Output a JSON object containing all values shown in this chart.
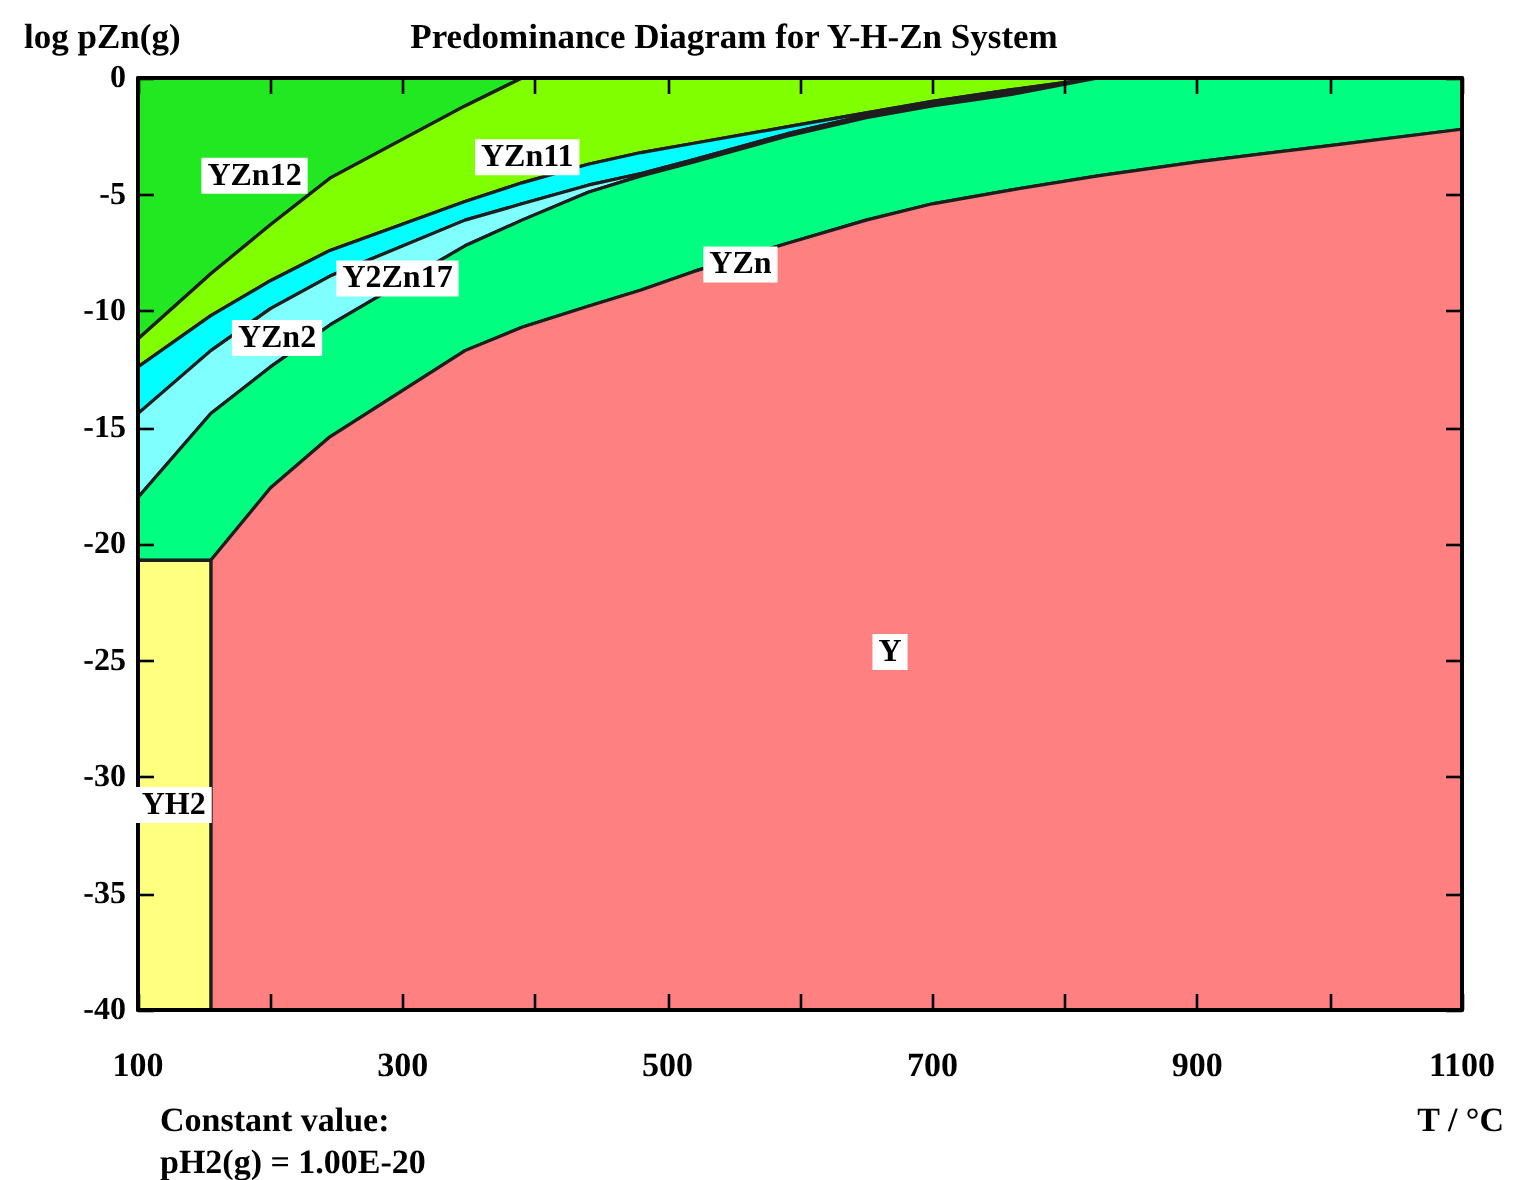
{
  "chart_data": {
    "type": "area",
    "title": "Predominance Diagram for Y-H-Zn System",
    "xlabel": "T / °C",
    "ylabel": "log pZn(g)",
    "annotations": [
      "Constant value:",
      "pH2(g) = 1.00E-20"
    ],
    "x": [
      100,
      155,
      155,
      200,
      245,
      347,
      390,
      440,
      480,
      520,
      590,
      650,
      700,
      760,
      825,
      900,
      1000,
      1100
    ],
    "stacked": true,
    "series": [
      {
        "name": "YZn12",
        "color": "#22e822",
        "values": [
          -11.2,
          -8.4,
          -8.4,
          -6.3,
          -4.3,
          -1.2,
          0,
          0,
          0,
          0,
          0,
          0,
          0,
          0,
          0,
          0,
          0,
          0
        ]
      },
      {
        "name": "YZn11",
        "color": "#80ff00",
        "values": [
          -1.2,
          -1.8,
          -1.8,
          -2.4,
          -3.1,
          -4.1,
          -4.5,
          -3.7,
          -3.2,
          -2.8,
          -2.1,
          -1.5,
          -1.0,
          -0.5,
          0,
          0,
          0,
          0
        ]
      },
      {
        "name": "Y2Zn17",
        "color": "#00ffff",
        "values": [
          -2.0,
          -1.5,
          -1.5,
          -1.2,
          -1.1,
          -0.8,
          -0.9,
          -0.9,
          -0.9,
          -0.7,
          -0.3,
          -0.1,
          -0.1,
          -0.1,
          0,
          0,
          0,
          0
        ]
      },
      {
        "name": "YZn2",
        "color": "#80ffff",
        "values": [
          -3.6,
          -2.7,
          -2.7,
          -2.5,
          -2.1,
          -1.1,
          -0.7,
          -0.3,
          -0.1,
          -0.1,
          -0.1,
          -0.1,
          -0.1,
          -0.1,
          0,
          0,
          0,
          0
        ]
      },
      {
        "name": "YZn",
        "color": "#00ff80",
        "values": [
          -2.7,
          -6.3,
          -6.3,
          -5.2,
          -4.8,
          -4.5,
          -4.6,
          -4.9,
          -4.9,
          -4.7,
          -4.6,
          -4.4,
          -4.2,
          -4.1,
          -4.2,
          -3.6,
          -2.9,
          -2.2
        ]
      },
      {
        "name": "Y",
        "color": "#ff8080",
        "values": [
          0,
          0,
          -19.3,
          -22.4,
          -24.6,
          -28.3,
          -29.3,
          -30.2,
          -30.9,
          -31.7,
          -32.9,
          -33.9,
          -34.6,
          -35.2,
          -35.8,
          -36.4,
          -37.1,
          -37.8
        ]
      },
      {
        "name": "YH2",
        "color": "#ffff80",
        "values": [
          -19.3,
          -19.3,
          0,
          0,
          0,
          0,
          0,
          0,
          0,
          0,
          0,
          0,
          0,
          0,
          0,
          0,
          0,
          0
        ]
      }
    ],
    "xlim": [
      100,
      1100
    ],
    "xticks": [
      100,
      {
        "value": 200,
        "label": null
      },
      300,
      {
        "value": 400,
        "label": null
      },
      500,
      {
        "value": 600,
        "label": null
      },
      700,
      {
        "value": 800,
        "label": null
      },
      900,
      {
        "value": 1000,
        "label": null
      },
      1100
    ],
    "ylim": [
      -40,
      0
    ],
    "yticks": [
      -40,
      -35,
      -30,
      -25,
      -20,
      -15,
      -10,
      -5,
      0
    ]
  }
}
